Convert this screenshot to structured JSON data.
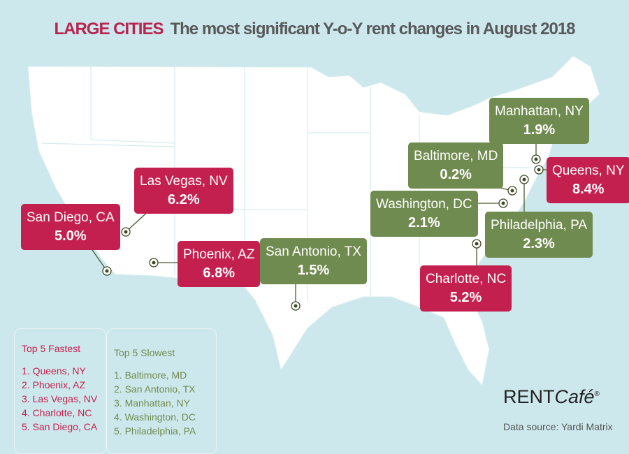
{
  "title": {
    "prefix": "LARGE CITIES",
    "text": "The most significant Y-o-Y rent changes in August 2018"
  },
  "colors": {
    "fast": "#c4204f",
    "slow": "#708b4f",
    "background": "#cde8ec",
    "land": "#ffffff"
  },
  "callouts": [
    {
      "city": "Las Vegas, NV",
      "change": "6.2%",
      "type": "fast"
    },
    {
      "city": "San Diego, CA",
      "change": "5.0%",
      "type": "fast"
    },
    {
      "city": "Phoenix, AZ",
      "change": "6.8%",
      "type": "fast"
    },
    {
      "city": "San Antonio, TX",
      "change": "1.5%",
      "type": "slow"
    },
    {
      "city": "Manhattan, NY",
      "change": "1.9%",
      "type": "slow"
    },
    {
      "city": "Baltimore, MD",
      "change": "0.2%",
      "type": "slow"
    },
    {
      "city": "Queens, NY",
      "change": "8.4%",
      "type": "fast"
    },
    {
      "city": "Washington, DC",
      "change": "2.1%",
      "type": "slow"
    },
    {
      "city": "Philadelphia, PA",
      "change": "2.3%",
      "type": "slow"
    },
    {
      "city": "Charlotte, NC",
      "change": "5.2%",
      "type": "fast"
    }
  ],
  "fastest": {
    "heading": "Top 5 Fastest",
    "items": [
      "1. Queens, NY",
      "2. Phoenix, AZ",
      "3. Las Vegas, NV",
      "4. Charlotte, NC",
      "5. San Diego, CA"
    ]
  },
  "slowest": {
    "heading": "Top 5 Slowest",
    "items": [
      "1. Baltimore, MD",
      "2. San Antonio, TX",
      "3. Manhattan, NY",
      "4. Washington, DC",
      "5. Philadelphia, PA"
    ]
  },
  "logo": {
    "rent": "RENT",
    "cafe": "Café",
    "reg": "®"
  },
  "source": "Data source:  Yardi Matrix"
}
